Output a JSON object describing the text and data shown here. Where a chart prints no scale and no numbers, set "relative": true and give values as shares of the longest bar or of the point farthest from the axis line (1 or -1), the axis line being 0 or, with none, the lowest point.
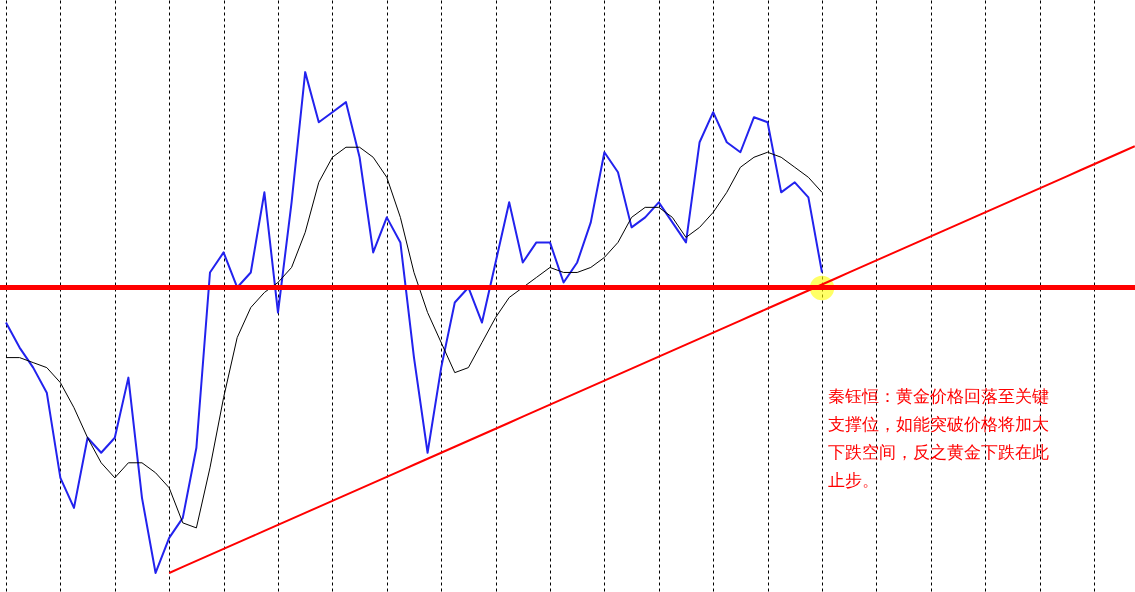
{
  "chart_data": {
    "type": "line",
    "relative": true,
    "tick_labels": false,
    "grid": "x",
    "categories": [
      null,
      null,
      null,
      null,
      null,
      null,
      null,
      null,
      null,
      null,
      null,
      null,
      null,
      null,
      null,
      null,
      null,
      null,
      null,
      null,
      null,
      null,
      null,
      null,
      null,
      null,
      null,
      null,
      null,
      null,
      null,
      null,
      null,
      null,
      null,
      null,
      null,
      null,
      null,
      null,
      null,
      null,
      null,
      null,
      null,
      null,
      null,
      null,
      null,
      null,
      null,
      null,
      null,
      null,
      null,
      null,
      null,
      null,
      null,
      null,
      null,
      null,
      null,
      null,
      null,
      null,
      null,
      null,
      null,
      null,
      null,
      null,
      null,
      null,
      null,
      null,
      null,
      null,
      null,
      null,
      null,
      null,
      null,
      null
    ],
    "series": [
      {
        "color": "#2222ee",
        "values": [
          0.5,
          0.45,
          0.41,
          0.36,
          0.19,
          0.13,
          0.27,
          0.24,
          0.27,
          0.39,
          0.15,
          0.0,
          0.07,
          0.11,
          0.25,
          0.6,
          0.64,
          0.57,
          0.6,
          0.76,
          0.52,
          0.74,
          1.0,
          0.9,
          0.92,
          0.94,
          0.83,
          0.64,
          0.71,
          0.66,
          0.43,
          0.24,
          0.41,
          0.54,
          0.57,
          0.5,
          0.62,
          0.74,
          0.62,
          0.66,
          0.66,
          0.58,
          0.62,
          0.7,
          0.84,
          0.8,
          0.69,
          0.71,
          0.74,
          0.7,
          0.66,
          0.86,
          0.92,
          0.86,
          0.84,
          0.91,
          0.9,
          0.76,
          0.78,
          0.75,
          0.6,
          null,
          null,
          null,
          null,
          null,
          null,
          null,
          null,
          null,
          null,
          null,
          null,
          null,
          null,
          null,
          null,
          null,
          null,
          null,
          null,
          null,
          null,
          null
        ]
      },
      {
        "color": "#000000",
        "values": [
          0.43,
          0.43,
          0.42,
          0.41,
          0.38,
          0.33,
          0.27,
          0.22,
          0.19,
          0.22,
          0.22,
          0.2,
          0.17,
          0.1,
          0.09,
          0.21,
          0.35,
          0.47,
          0.53,
          0.56,
          0.58,
          0.61,
          0.68,
          0.78,
          0.83,
          0.85,
          0.85,
          0.83,
          0.79,
          0.71,
          0.6,
          0.52,
          0.46,
          0.4,
          0.41,
          0.46,
          0.51,
          0.55,
          0.57,
          0.59,
          0.61,
          0.6,
          0.6,
          0.61,
          0.63,
          0.66,
          0.71,
          0.73,
          0.73,
          0.71,
          0.67,
          0.69,
          0.72,
          0.76,
          0.81,
          0.83,
          0.84,
          0.83,
          0.81,
          0.79,
          0.76,
          null,
          null,
          null,
          null,
          null,
          null,
          null,
          null,
          null,
          null,
          null,
          null,
          null,
          null,
          null,
          null,
          null,
          null,
          null,
          null,
          null,
          null,
          null
        ]
      },
      {
        "color": "#ff0000",
        "values": [
          null,
          null,
          null,
          null,
          null,
          null,
          null,
          null,
          null,
          null,
          null,
          null,
          0.0,
          0.012,
          0.024,
          0.036,
          0.048,
          0.06,
          0.072,
          0.084,
          0.096,
          0.108,
          0.12,
          0.132,
          0.144,
          0.156,
          0.168,
          0.18,
          0.192,
          0.204,
          0.216,
          0.228,
          0.24,
          0.252,
          0.264,
          0.276,
          0.288,
          0.3,
          0.312,
          0.324,
          0.336,
          0.348,
          0.36,
          0.372,
          0.384,
          0.396,
          0.408,
          0.42,
          0.432,
          0.444,
          0.456,
          0.468,
          0.48,
          0.492,
          0.504,
          0.516,
          0.528,
          0.54,
          0.552,
          0.564,
          0.576,
          0.588,
          0.6,
          0.612,
          0.624,
          0.636,
          0.648,
          0.66,
          0.672,
          0.684,
          0.696,
          0.708,
          0.72,
          0.732,
          0.744,
          0.756,
          0.768,
          0.78,
          0.792,
          0.804,
          0.816,
          0.828,
          0.84,
          0.852
        ]
      }
    ],
    "ref_lines": [
      {
        "axis": "y",
        "value": 0.57,
        "color": "#ff0000"
      }
    ],
    "annotations": [
      "秦钰恒：黄金价格回落至关键支撑位，如能突破价格将加大下跌空间，反之黄金下跌在此止步。"
    ]
  }
}
